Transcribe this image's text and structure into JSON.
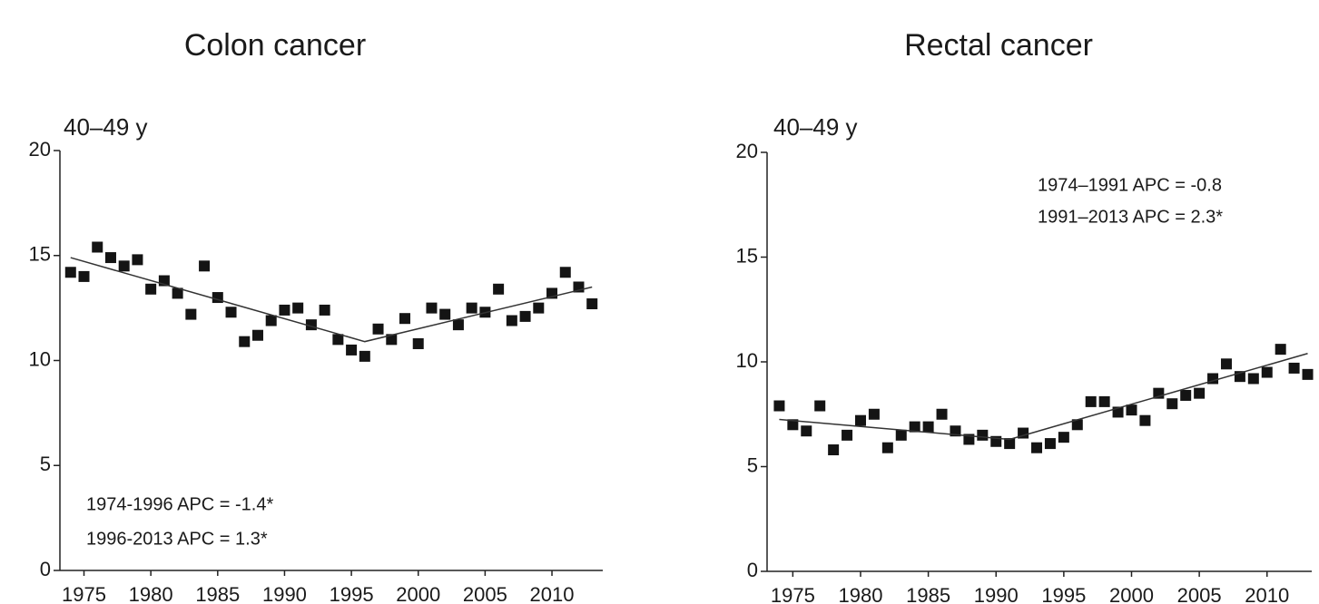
{
  "chart_data": [
    {
      "type": "scatter",
      "title": "Colon cancer",
      "subtitle": "40–49 y",
      "annotations": [
        "1974-1996 APC = -1.4*",
        "1996-2013 APC = 1.3*"
      ],
      "x": [
        1974,
        1975,
        1976,
        1977,
        1978,
        1979,
        1980,
        1981,
        1982,
        1983,
        1984,
        1985,
        1986,
        1987,
        1988,
        1989,
        1990,
        1991,
        1992,
        1993,
        1994,
        1995,
        1996,
        1997,
        1998,
        1999,
        2000,
        2001,
        2002,
        2003,
        2004,
        2005,
        2006,
        2007,
        2008,
        2009,
        2010,
        2011,
        2012,
        2013
      ],
      "series": [
        {
          "type": "scatter",
          "color": "#141414",
          "values": [
            14.2,
            14.0,
            15.4,
            14.9,
            14.5,
            14.8,
            13.4,
            13.8,
            13.2,
            12.2,
            14.5,
            13.0,
            12.3,
            10.9,
            11.2,
            11.9,
            12.4,
            12.5,
            11.7,
            12.4,
            11.0,
            10.5,
            10.2,
            11.5,
            11.0,
            12.0,
            10.8,
            12.5,
            12.2,
            11.7,
            12.5,
            12.3,
            13.4,
            11.9,
            12.1,
            12.5,
            13.2,
            14.2,
            13.5,
            12.7
          ]
        },
        {
          "type": "line",
          "color": "#333333",
          "x": [
            1974,
            1996,
            2013
          ],
          "values": [
            14.9,
            10.9,
            13.5
          ]
        }
      ],
      "xlim": [
        1973.2,
        2013.8
      ],
      "xticks": [
        1975,
        1980,
        1985,
        1990,
        1995,
        2000,
        2005,
        2010
      ],
      "ylim": [
        0,
        20
      ],
      "yticks": [
        0,
        5,
        10,
        15,
        20
      ]
    },
    {
      "type": "scatter",
      "title": "Rectal cancer",
      "subtitle": "40–49 y",
      "annotations": [
        "1974–1991 APC = -0.8",
        "1991–2013 APC = 2.3*"
      ],
      "x": [
        1974,
        1975,
        1976,
        1977,
        1978,
        1979,
        1980,
        1981,
        1982,
        1983,
        1984,
        1985,
        1986,
        1987,
        1988,
        1989,
        1990,
        1991,
        1992,
        1993,
        1994,
        1995,
        1996,
        1997,
        1998,
        1999,
        2000,
        2001,
        2002,
        2003,
        2004,
        2005,
        2006,
        2007,
        2008,
        2009,
        2010,
        2011,
        2012,
        2013
      ],
      "series": [
        {
          "type": "scatter",
          "color": "#141414",
          "values": [
            7.9,
            7.0,
            6.7,
            7.9,
            5.8,
            6.5,
            7.2,
            7.5,
            5.9,
            6.5,
            6.9,
            6.9,
            7.5,
            6.7,
            6.3,
            6.5,
            6.2,
            6.1,
            6.6,
            5.9,
            6.1,
            6.4,
            7.0,
            8.1,
            8.1,
            7.6,
            7.7,
            7.2,
            8.5,
            8.0,
            8.4,
            8.5,
            9.2,
            9.9,
            9.3,
            9.2,
            9.5,
            10.6,
            9.7,
            9.4
          ]
        },
        {
          "type": "line",
          "color": "#333333",
          "x": [
            1974,
            1991,
            2013
          ],
          "values": [
            7.25,
            6.3,
            10.4
          ]
        }
      ],
      "xlim": [
        1973.1,
        2013.3
      ],
      "xticks": [
        1975,
        1980,
        1985,
        1990,
        1995,
        2000,
        2005,
        2010
      ],
      "ylim": [
        0,
        20
      ],
      "yticks": [
        0,
        5,
        10,
        15,
        20
      ]
    }
  ]
}
